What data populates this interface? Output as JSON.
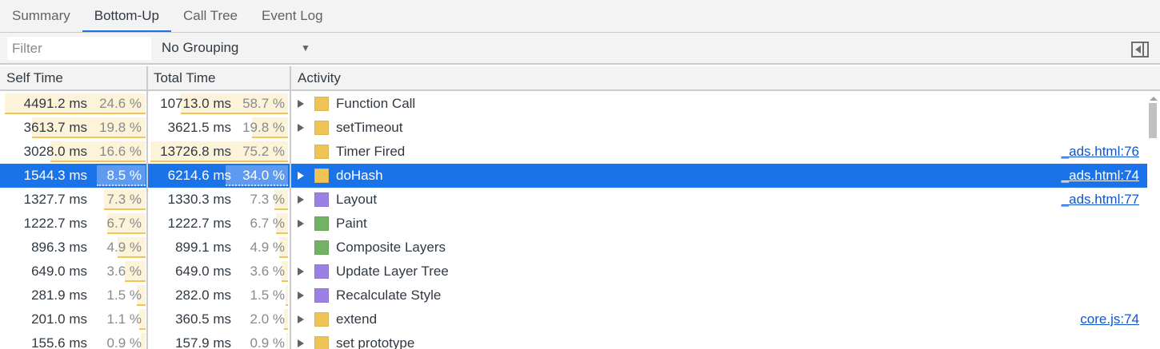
{
  "tabs": [
    {
      "label": "Summary"
    },
    {
      "label": "Bottom-Up",
      "active": true
    },
    {
      "label": "Call Tree"
    },
    {
      "label": "Event Log"
    }
  ],
  "toolbar": {
    "filter_placeholder": "Filter",
    "filter_value": "",
    "grouping": "No Grouping"
  },
  "columns": {
    "self": "Self Time",
    "total": "Total Time",
    "activity": "Activity"
  },
  "colors": {
    "scripting": "#efc457",
    "rendering": "#9c80e3",
    "painting": "#71b363",
    "selection": "#1a73e8",
    "link": "#1155cc"
  },
  "rows": [
    {
      "self_ms": "4491.2 ms",
      "self_pct": 24.6,
      "total_ms": "10713.0 ms",
      "total_pct": 58.7,
      "activity": "Function Call",
      "category": "scripting",
      "expandable": true,
      "link": ""
    },
    {
      "self_ms": "3613.7 ms",
      "self_pct": 19.8,
      "total_ms": "3621.5 ms",
      "total_pct": 19.8,
      "activity": "setTimeout",
      "category": "scripting",
      "expandable": true,
      "link": ""
    },
    {
      "self_ms": "3028.0 ms",
      "self_pct": 16.6,
      "total_ms": "13726.8 ms",
      "total_pct": 75.2,
      "activity": "Timer Fired",
      "category": "scripting",
      "expandable": false,
      "link": "_ads.html:76"
    },
    {
      "self_ms": "1544.3 ms",
      "self_pct": 8.5,
      "total_ms": "6214.6 ms",
      "total_pct": 34.0,
      "activity": "doHash",
      "category": "scripting",
      "expandable": true,
      "link": "_ads.html:74",
      "selected": true
    },
    {
      "self_ms": "1327.7 ms",
      "self_pct": 7.3,
      "total_ms": "1330.3 ms",
      "total_pct": 7.3,
      "activity": "Layout",
      "category": "rendering",
      "expandable": true,
      "link": "_ads.html:77"
    },
    {
      "self_ms": "1222.7 ms",
      "self_pct": 6.7,
      "total_ms": "1222.7 ms",
      "total_pct": 6.7,
      "activity": "Paint",
      "category": "painting",
      "expandable": true,
      "link": ""
    },
    {
      "self_ms": "896.3 ms",
      "self_pct": 4.9,
      "total_ms": "899.1 ms",
      "total_pct": 4.9,
      "activity": "Composite Layers",
      "category": "painting",
      "expandable": false,
      "link": ""
    },
    {
      "self_ms": "649.0 ms",
      "self_pct": 3.6,
      "total_ms": "649.0 ms",
      "total_pct": 3.6,
      "activity": "Update Layer Tree",
      "category": "rendering",
      "expandable": true,
      "link": ""
    },
    {
      "self_ms": "281.9 ms",
      "self_pct": 1.5,
      "total_ms": "282.0 ms",
      "total_pct": 1.5,
      "activity": "Recalculate Style",
      "category": "rendering",
      "expandable": true,
      "link": ""
    },
    {
      "self_ms": "201.0 ms",
      "self_pct": 1.1,
      "total_ms": "360.5 ms",
      "total_pct": 2.0,
      "activity": "extend",
      "category": "scripting",
      "expandable": true,
      "link": "core.js:74"
    },
    {
      "self_ms": "155.6 ms",
      "self_pct": 0.9,
      "total_ms": "157.9 ms",
      "total_pct": 0.9,
      "activity": "set prototype",
      "category": "scripting",
      "expandable": true,
      "link": ""
    }
  ]
}
